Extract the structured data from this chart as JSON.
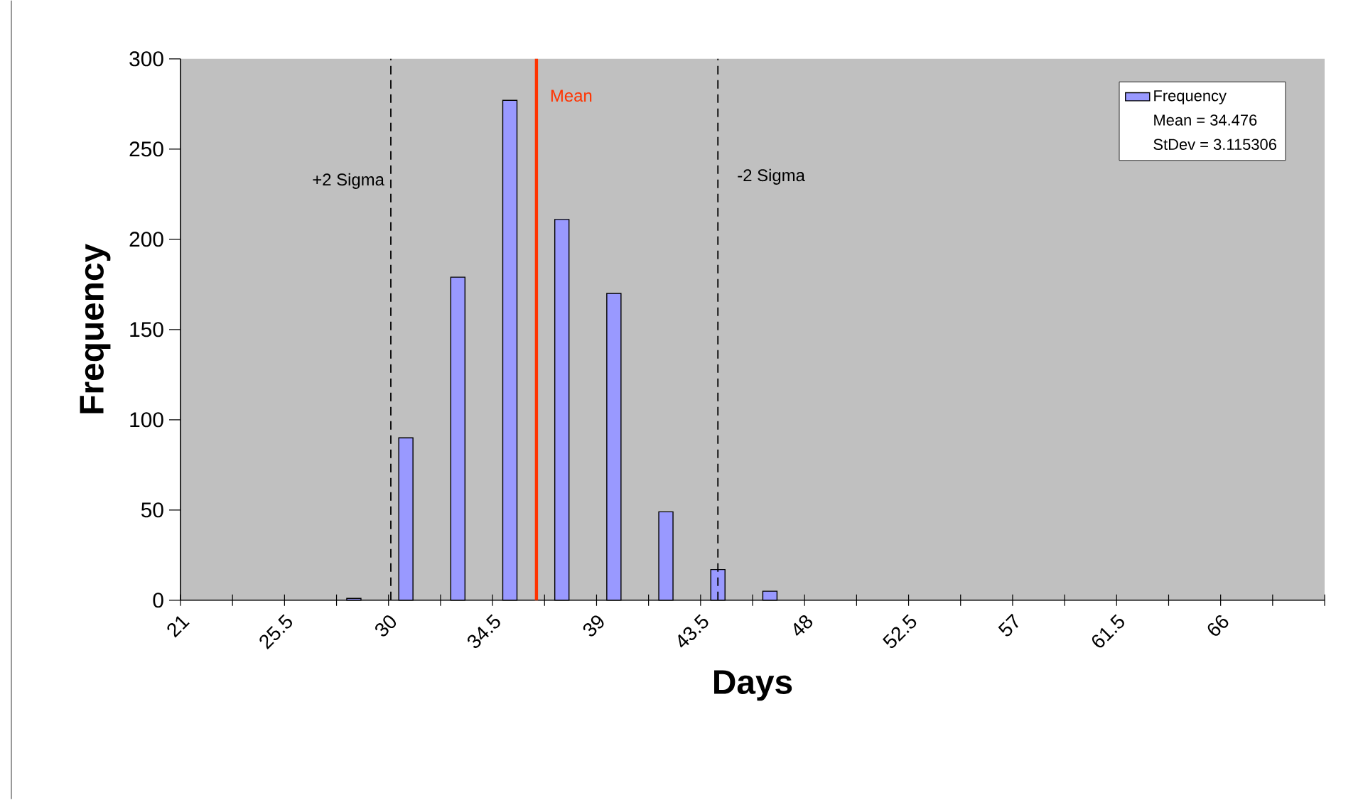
{
  "chart_data": {
    "type": "bar",
    "xlabel": "Days",
    "ylabel": "Frequency",
    "x": [
      28.5,
      30.75,
      33,
      35.25,
      37.5,
      39.75,
      42,
      44.25,
      46.5
    ],
    "series": [
      {
        "name": "Frequency",
        "color": "#9999ff",
        "values": [
          1,
          90,
          179,
          277,
          211,
          170,
          49,
          17,
          5
        ]
      }
    ],
    "xlim": [
      21,
      70.5
    ],
    "xticks": [
      21,
      {
        "value": 23.25,
        "label": null
      },
      25.5,
      {
        "value": 27.75,
        "label": null
      },
      30,
      {
        "value": 32.25,
        "label": null
      },
      34.5,
      {
        "value": 36.75,
        "label": null
      },
      39,
      {
        "value": 41.25,
        "label": null
      },
      43.5,
      {
        "value": 45.75,
        "label": null
      },
      48,
      {
        "value": 50.25,
        "label": null
      },
      52.5,
      {
        "value": 54.75,
        "label": null
      },
      57,
      {
        "value": 59.25,
        "label": null
      },
      61.5,
      {
        "value": 63.75,
        "label": null
      },
      66,
      {
        "value": 68.25,
        "label": null
      },
      {
        "value": 70.5,
        "label": null
      }
    ],
    "ylim": [
      0,
      300
    ],
    "yticks": [
      0,
      50,
      100,
      150,
      200,
      250,
      300
    ],
    "ref_lines": [
      {
        "axis": "x",
        "value": 30.1,
        "label": "+2 Sigma",
        "color": "#000000",
        "line_style": "dashed"
      },
      {
        "axis": "x",
        "value": 36.4,
        "label": "Mean",
        "color": "#ff3300",
        "line_style": "solid"
      },
      {
        "axis": "x",
        "value": 44.25,
        "label": "-2 Sigma",
        "color": "#000000",
        "line_style": "dashed"
      }
    ],
    "annotations": [
      "Mean = 34.476",
      "StDev = 3.115306"
    ],
    "legend": "top right",
    "grid": false
  }
}
